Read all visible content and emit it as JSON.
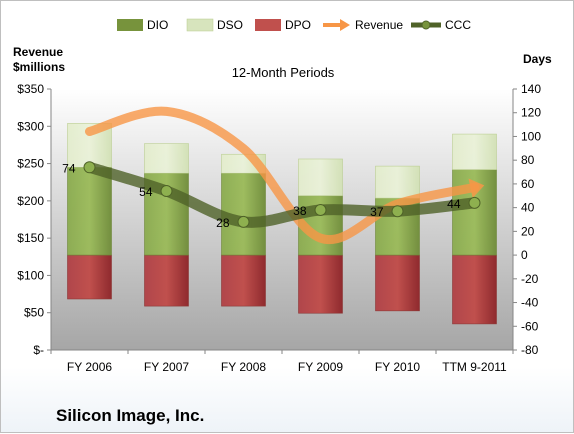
{
  "chart_data": {
    "type": "bar",
    "title": "12-Month Periods",
    "company": "Silicon Image, Inc.",
    "categories": [
      "FY 2006",
      "FY 2007",
      "FY 2008",
      "FY 2009",
      "FY 2010",
      "TTM 9-2011"
    ],
    "left_axis": {
      "title_line1": "Revenue",
      "title_line2": "$millions",
      "ylim": [
        0,
        350
      ],
      "tick_values": [
        0,
        50,
        100,
        150,
        200,
        250,
        300,
        350
      ],
      "tick_labels": [
        "$-",
        "$50",
        "$100",
        "$150",
        "$200",
        "$250",
        "$300",
        "$350"
      ]
    },
    "right_axis": {
      "title": "Days",
      "ylim": [
        -80,
        140
      ],
      "tick_values": [
        -80,
        -60,
        -40,
        -20,
        0,
        20,
        40,
        60,
        80,
        100,
        120,
        140
      ],
      "tick_labels": [
        "-80",
        "-60",
        "-40",
        "-20",
        "0",
        "20",
        "40",
        "60",
        "80",
        "100",
        "120",
        "140"
      ]
    },
    "series": [
      {
        "name": "DIO",
        "axis": "right",
        "kind": "stacked-bar",
        "color": "#77933c",
        "values": [
          74,
          69,
          69,
          50,
          48,
          72
        ]
      },
      {
        "name": "DSO",
        "axis": "right",
        "kind": "stacked-bar",
        "color": "#d7e4bd",
        "values": [
          37,
          25,
          16,
          31,
          27,
          30
        ]
      },
      {
        "name": "DPO",
        "axis": "right",
        "kind": "negative-bar",
        "color": "#a0282d",
        "values": [
          -37,
          -43,
          -43,
          -49,
          -47,
          -58
        ]
      },
      {
        "name": "Revenue",
        "axis": "left",
        "kind": "line",
        "color": "#f79646",
        "values": [
          293,
          320,
          270,
          150,
          196,
          218
        ]
      },
      {
        "name": "CCC",
        "axis": "right",
        "kind": "line-markers",
        "color": "#4f6228",
        "values": [
          74,
          54,
          28,
          38,
          37,
          44
        ]
      }
    ],
    "ccc_labels": [
      "74",
      "54",
      "28",
      "38",
      "37",
      "44"
    ],
    "legend_position": "top",
    "grid": false
  }
}
